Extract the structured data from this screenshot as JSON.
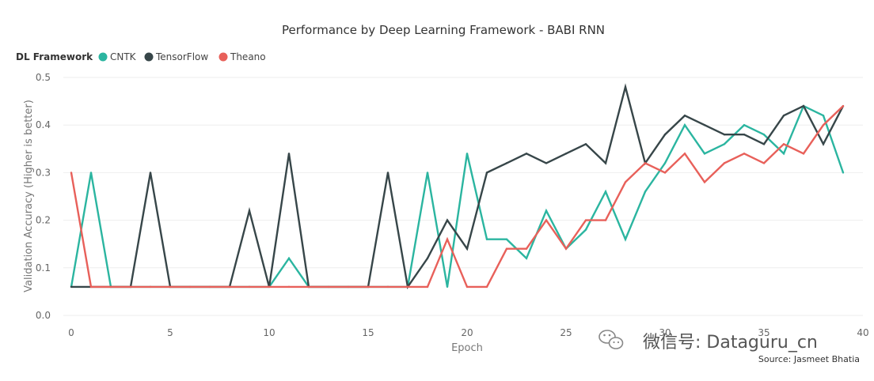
{
  "chart_data": {
    "type": "line",
    "title": "Performance by Deep Learning Framework - BABI RNN",
    "legend_title": "DL Framework",
    "legend_position": "top-left",
    "xlabel": "Epoch",
    "ylabel": "Validation Accuracy (Higher is better)",
    "xlim": [
      0,
      40
    ],
    "ylim": [
      0,
      0.5
    ],
    "xticks": [
      "0",
      "5",
      "10",
      "15",
      "20",
      "25",
      "30",
      "35",
      "40"
    ],
    "yticks": [
      "0.0",
      "0.1",
      "0.2",
      "0.3",
      "0.4",
      "0.5"
    ],
    "grid": "horizontal",
    "x": [
      0,
      1,
      2,
      3,
      4,
      5,
      6,
      7,
      8,
      9,
      10,
      11,
      12,
      13,
      14,
      15,
      16,
      17,
      18,
      19,
      20,
      21,
      22,
      23,
      24,
      25,
      26,
      27,
      28,
      29,
      30,
      31,
      32,
      33,
      34,
      35,
      36,
      37,
      38,
      39
    ],
    "series": [
      {
        "name": "CNTK",
        "color": "#2bb5a0",
        "values": [
          0.06,
          0.3,
          0.06,
          0.06,
          0.06,
          0.06,
          0.06,
          0.06,
          0.06,
          0.06,
          0.06,
          0.12,
          0.06,
          0.06,
          0.06,
          0.06,
          0.06,
          0.06,
          0.3,
          0.06,
          0.34,
          0.16,
          0.16,
          0.12,
          0.22,
          0.14,
          0.18,
          0.26,
          0.16,
          0.26,
          0.32,
          0.4,
          0.34,
          0.36,
          0.4,
          0.38,
          0.34,
          0.44,
          0.42,
          0.3
        ]
      },
      {
        "name": "TensorFlow",
        "color": "#374649",
        "values": [
          0.06,
          0.06,
          0.06,
          0.06,
          0.3,
          0.06,
          0.06,
          0.06,
          0.06,
          0.22,
          0.06,
          0.34,
          0.06,
          0.06,
          0.06,
          0.06,
          0.3,
          0.06,
          0.12,
          0.2,
          0.14,
          0.3,
          0.32,
          0.34,
          0.32,
          0.34,
          0.36,
          0.32,
          0.48,
          0.32,
          0.38,
          0.42,
          0.4,
          0.38,
          0.38,
          0.36,
          0.42,
          0.44,
          0.36,
          0.44
        ]
      },
      {
        "name": "Theano",
        "color": "#e8605a",
        "values": [
          0.3,
          0.06,
          0.06,
          0.06,
          0.06,
          0.06,
          0.06,
          0.06,
          0.06,
          0.06,
          0.06,
          0.06,
          0.06,
          0.06,
          0.06,
          0.06,
          0.06,
          0.06,
          0.06,
          0.16,
          0.06,
          0.06,
          0.14,
          0.14,
          0.2,
          0.14,
          0.2,
          0.2,
          0.28,
          0.32,
          0.3,
          0.34,
          0.28,
          0.32,
          0.34,
          0.32,
          0.36,
          0.34,
          0.4,
          0.44
        ]
      }
    ],
    "source": "Source: Jasmeet Bhatia"
  },
  "watermark": {
    "text": "微信号: Dataguru_cn",
    "icon": "wechat-icon"
  }
}
